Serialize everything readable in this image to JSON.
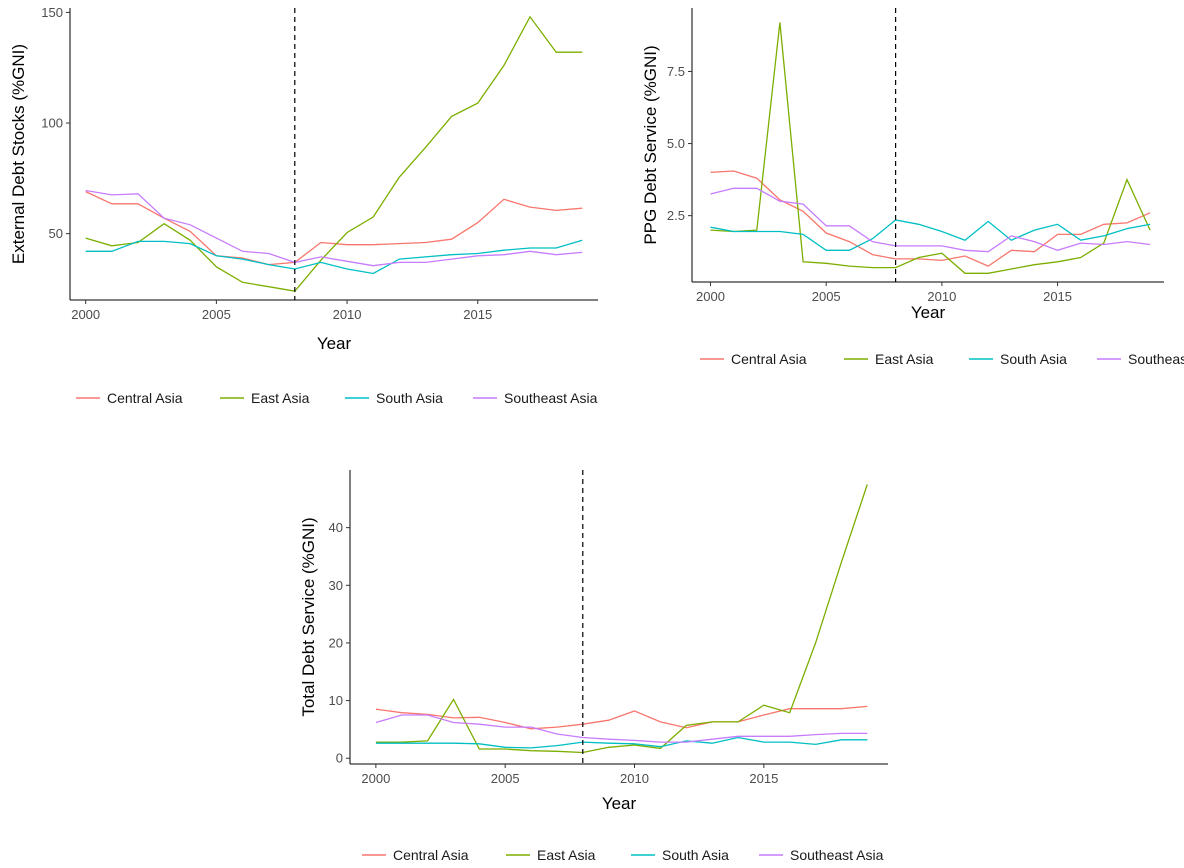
{
  "legend": {
    "series": [
      {
        "name": "Central Asia",
        "color": "#F8766D"
      },
      {
        "name": "East Asia",
        "color": "#7CAE00"
      },
      {
        "name": "South Asia",
        "color": "#00BFC4"
      },
      {
        "name": "Southeast Asia",
        "color": "#C77CFF"
      }
    ]
  },
  "chart_data": [
    {
      "type": "line",
      "title": "",
      "xlabel": "Year",
      "ylabel": "External Debt Stocks (%GNI)",
      "x": [
        2000,
        2001,
        2002,
        2003,
        2004,
        2005,
        2006,
        2007,
        2008,
        2009,
        2010,
        2011,
        2012,
        2013,
        2014,
        2015,
        2016,
        2017,
        2018,
        2019
      ],
      "xlim": [
        1999.4,
        2019.6
      ],
      "ylim": [
        20,
        152
      ],
      "xticks": [
        2000,
        2005,
        2010,
        2015
      ],
      "yticks": [
        50,
        100,
        150
      ],
      "vline": 2008,
      "legend_position": "bottom",
      "series": [
        {
          "name": "Central Asia",
          "values": [
            69,
            63.5,
            63.5,
            57,
            51,
            40,
            39,
            36,
            37,
            46,
            45,
            45,
            45.5,
            46,
            47.5,
            55,
            65.5,
            62,
            60.5,
            61.5
          ]
        },
        {
          "name": "East Asia",
          "values": [
            48,
            44.5,
            46,
            54.5,
            47,
            35,
            28,
            26,
            24,
            38,
            50.5,
            57.5,
            75.5,
            89,
            103,
            109,
            126,
            148,
            132,
            132
          ]
        },
        {
          "name": "South Asia",
          "values": [
            42,
            42,
            46.5,
            46.5,
            45.5,
            40,
            38.5,
            36,
            34,
            37,
            34,
            32,
            38.5,
            39.5,
            40.5,
            41,
            42.5,
            43.5,
            43.5,
            47
          ]
        },
        {
          "name": "Southeast Asia",
          "values": [
            69.5,
            67.5,
            68,
            57,
            54,
            48,
            42,
            41,
            37,
            39.5,
            37.5,
            35.5,
            37,
            37,
            38.5,
            40,
            40.5,
            42,
            40.5,
            41.5
          ]
        }
      ]
    },
    {
      "type": "line",
      "title": "",
      "xlabel": "Year",
      "ylabel": "PPG Debt Service (%GNI)",
      "x": [
        2000,
        2001,
        2002,
        2003,
        2004,
        2005,
        2006,
        2007,
        2008,
        2009,
        2010,
        2011,
        2012,
        2013,
        2014,
        2015,
        2016,
        2017,
        2018,
        2019
      ],
      "xlim": [
        1999.2,
        2019.6
      ],
      "ylim": [
        0.2,
        9.7
      ],
      "xticks": [
        2000,
        2005,
        2010,
        2015
      ],
      "ytick_labels": [
        "2.5",
        "5.0",
        "7.5"
      ],
      "vline": 2008,
      "legend_position": "bottom",
      "series": [
        {
          "name": "Central Asia",
          "values": [
            4.0,
            4.05,
            3.8,
            3.05,
            2.65,
            1.9,
            1.6,
            1.15,
            1.0,
            1.0,
            0.95,
            1.1,
            0.75,
            1.3,
            1.25,
            1.85,
            1.85,
            2.2,
            2.25,
            2.6
          ]
        },
        {
          "name": "East Asia",
          "values": [
            2.0,
            1.95,
            2.0,
            9.2,
            0.9,
            0.85,
            0.75,
            0.7,
            0.7,
            1.05,
            1.2,
            0.5,
            0.5,
            0.65,
            0.8,
            0.9,
            1.05,
            1.55,
            3.75,
            2.0
          ]
        },
        {
          "name": "South Asia",
          "values": [
            2.1,
            1.95,
            1.95,
            1.95,
            1.85,
            1.3,
            1.3,
            1.7,
            2.35,
            2.2,
            1.95,
            1.65,
            2.3,
            1.65,
            2.0,
            2.2,
            1.65,
            1.8,
            2.05,
            2.2
          ]
        },
        {
          "name": "Southeast Asia",
          "values": [
            3.25,
            3.45,
            3.45,
            3.0,
            2.9,
            2.15,
            2.15,
            1.6,
            1.45,
            1.45,
            1.45,
            1.3,
            1.25,
            1.8,
            1.6,
            1.3,
            1.55,
            1.5,
            1.6,
            1.5
          ]
        }
      ]
    },
    {
      "type": "line",
      "title": "",
      "xlabel": "Year",
      "ylabel": "Total Debt Service (%GNI)",
      "x": [
        2000,
        2001,
        2002,
        2003,
        2004,
        2005,
        2006,
        2007,
        2008,
        2009,
        2010,
        2011,
        2012,
        2013,
        2014,
        2015,
        2016,
        2017,
        2018,
        2019
      ],
      "xlim": [
        1999,
        2019.8
      ],
      "ylim": [
        -1,
        50
      ],
      "xticks": [
        2000,
        2005,
        2010,
        2015
      ],
      "yticks": [
        0,
        10,
        20,
        30,
        40
      ],
      "vline": 2008,
      "legend_position": "bottom",
      "series": [
        {
          "name": "Central Asia",
          "values": [
            8.5,
            7.9,
            7.6,
            7.0,
            7.1,
            6.2,
            5.1,
            5.4,
            5.9,
            6.6,
            8.2,
            6.3,
            5.3,
            6.3,
            6.3,
            7.5,
            8.6,
            8.6,
            8.6,
            9.0
          ]
        },
        {
          "name": "East Asia",
          "values": [
            2.8,
            2.8,
            3.0,
            10.2,
            1.6,
            1.6,
            1.3,
            1.2,
            1.0,
            1.9,
            2.3,
            1.7,
            5.7,
            6.3,
            6.3,
            9.2,
            7.9,
            20.0,
            34.0,
            47.5
          ]
        },
        {
          "name": "South Asia",
          "values": [
            2.6,
            2.6,
            2.6,
            2.6,
            2.5,
            1.9,
            1.8,
            2.2,
            2.8,
            2.6,
            2.5,
            2.0,
            3.0,
            2.6,
            3.6,
            2.8,
            2.8,
            2.4,
            3.2,
            3.2
          ]
        },
        {
          "name": "Southeast Asia",
          "values": [
            6.2,
            7.5,
            7.5,
            6.2,
            5.9,
            5.4,
            5.4,
            4.2,
            3.6,
            3.3,
            3.1,
            2.8,
            2.8,
            3.3,
            3.8,
            3.8,
            3.8,
            4.1,
            4.3,
            4.3
          ]
        }
      ]
    }
  ]
}
